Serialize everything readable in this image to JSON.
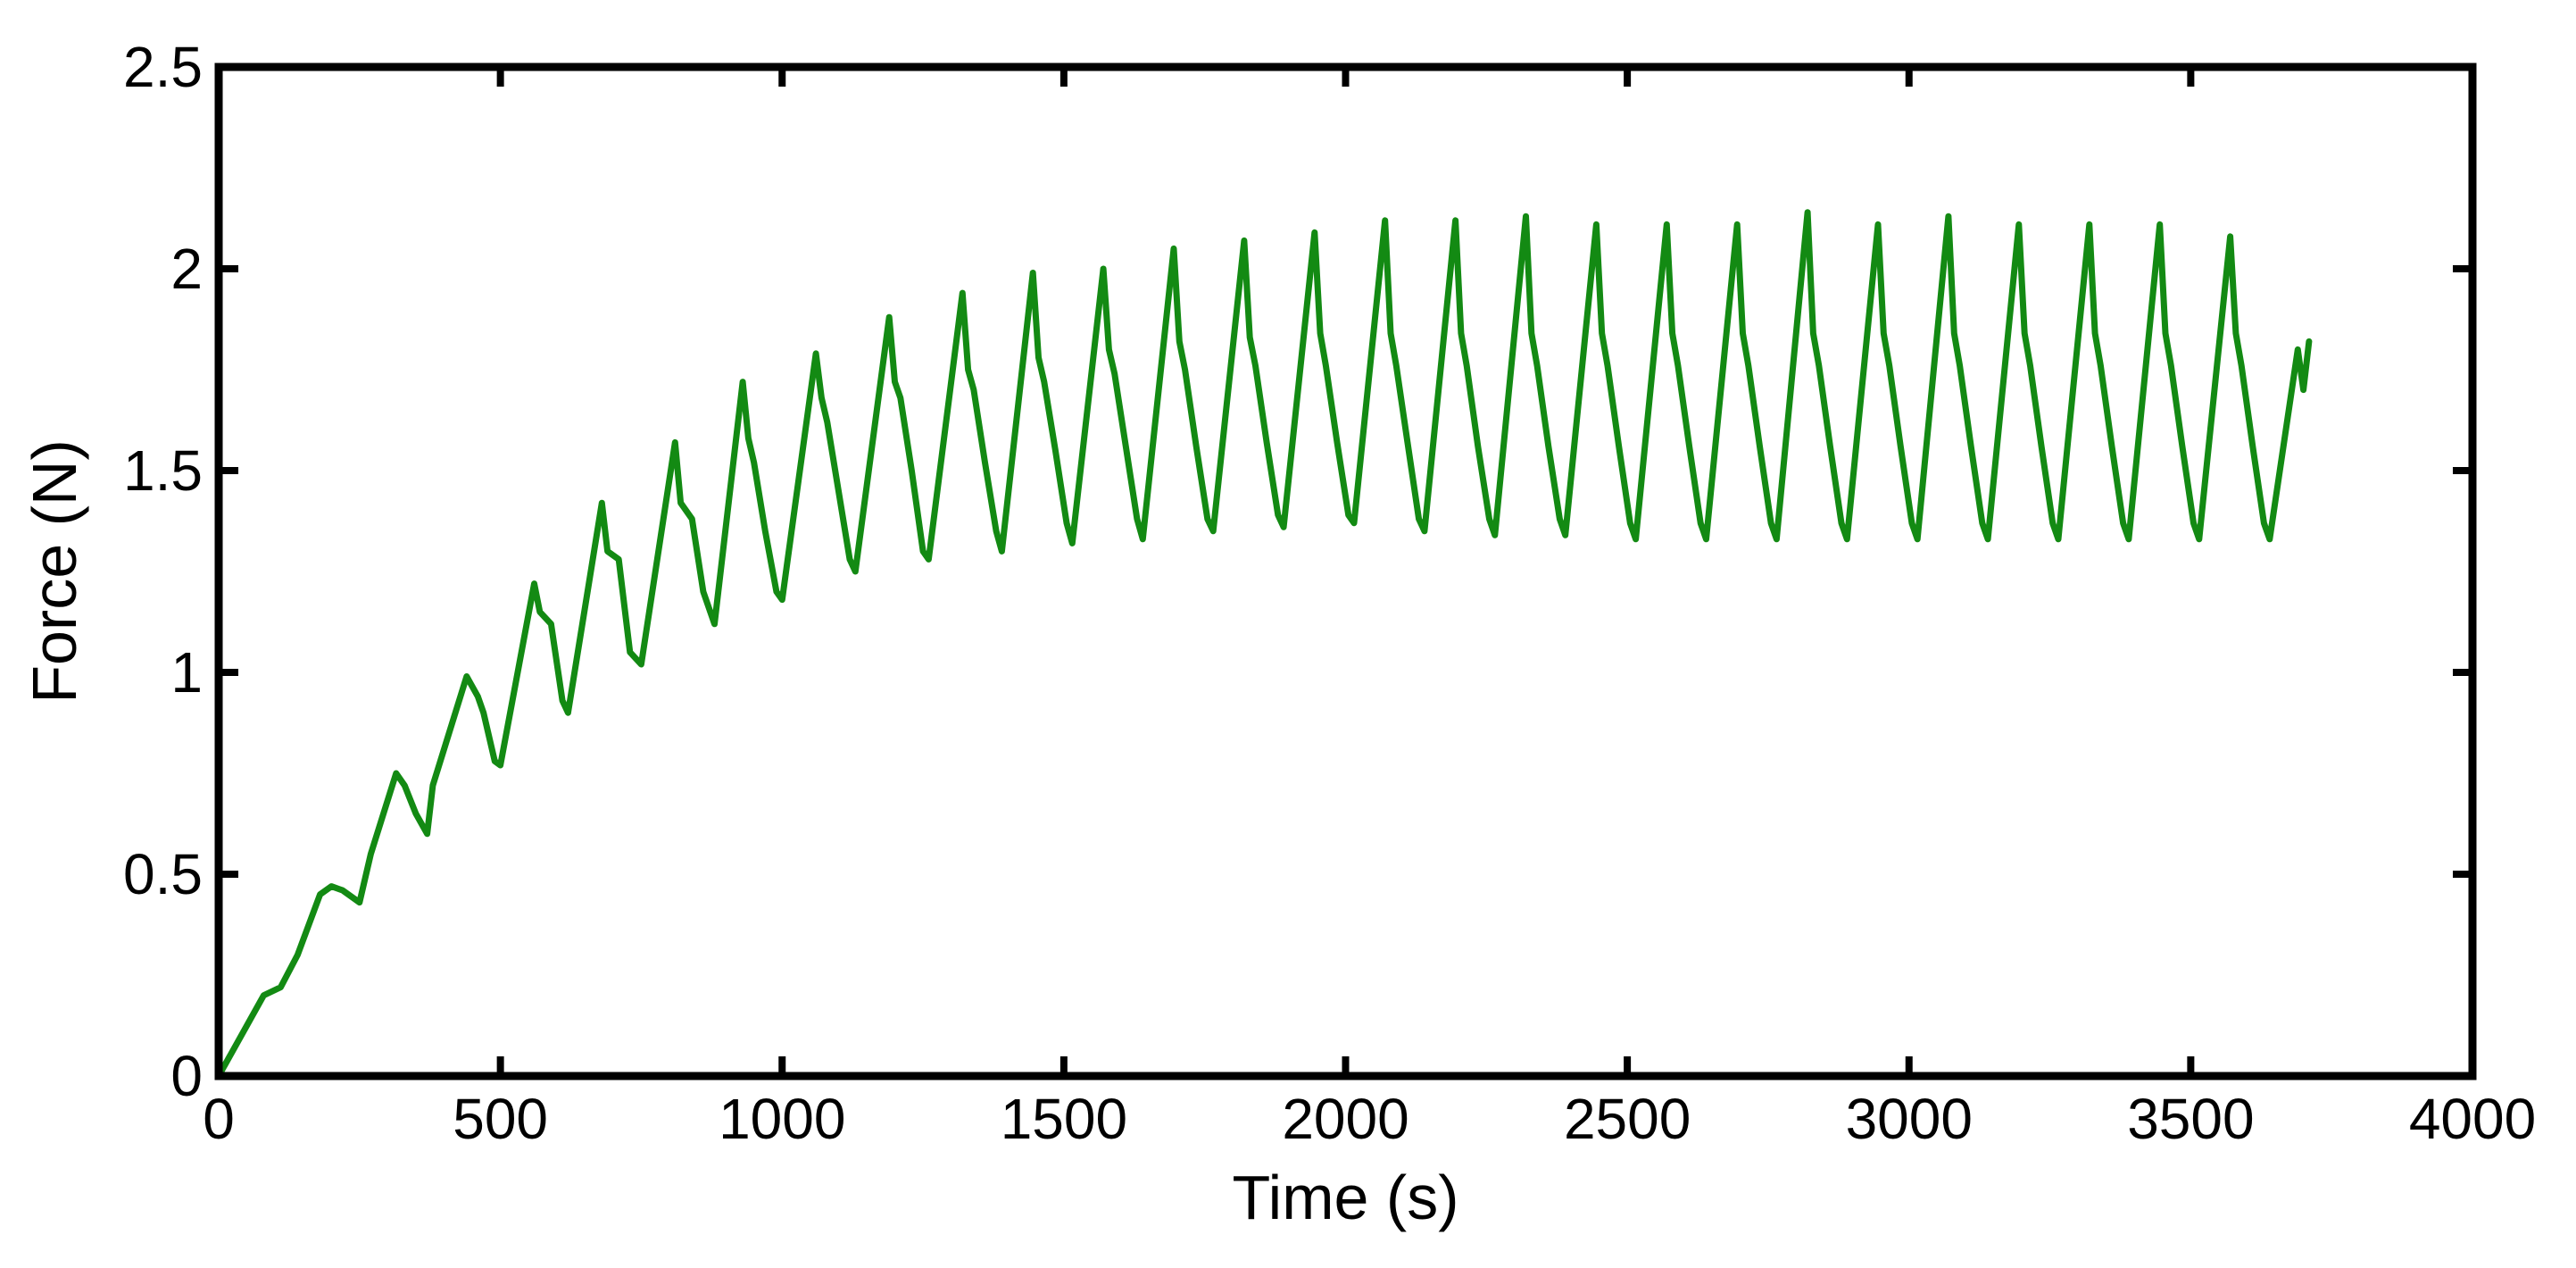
{
  "chart_data": {
    "type": "line",
    "title": "",
    "xlabel": "Time (s)",
    "ylabel": "Force (N)",
    "xlim": [
      0,
      4000
    ],
    "ylim": [
      0,
      2.5
    ],
    "grid": false,
    "x_ticks": [
      0,
      500,
      1000,
      1500,
      2000,
      2500,
      3000,
      3500,
      4000
    ],
    "x_tick_labels": [
      "0",
      "500",
      "1000",
      "1500",
      "2000",
      "2500",
      "3000",
      "3500",
      "4000"
    ],
    "y_ticks": [
      0,
      0.5,
      1,
      1.5,
      2,
      2.5
    ],
    "y_tick_labels": [
      "0",
      "0.5",
      "1",
      "1.5",
      "2",
      "2.5"
    ],
    "series": [
      {
        "name": "Force",
        "color": "#138a13",
        "x": [
          0,
          80,
          110,
          140,
          180,
          200,
          220,
          250,
          270,
          315,
          330,
          350,
          370,
          380,
          440,
          460,
          470,
          490,
          500,
          560,
          570,
          590,
          610,
          620,
          680,
          690,
          710,
          730,
          750,
          810,
          820,
          840,
          860,
          880,
          930,
          940,
          950,
          970,
          990,
          1000,
          1060,
          1070,
          1080,
          1100,
          1120,
          1130,
          1190,
          1200,
          1210,
          1230,
          1250,
          1260,
          1320,
          1330,
          1340,
          1360,
          1380,
          1390,
          1445,
          1455,
          1465,
          1485,
          1505,
          1515,
          1570,
          1580,
          1590,
          1610,
          1630,
          1640,
          1695,
          1705,
          1715,
          1735,
          1755,
          1765,
          1820,
          1830,
          1840,
          1860,
          1880,
          1890,
          1945,
          1955,
          1965,
          1985,
          2005,
          2015,
          2070,
          2080,
          2090,
          2110,
          2130,
          2140,
          2195,
          2205,
          2215,
          2235,
          2255,
          2265,
          2320,
          2330,
          2340,
          2360,
          2380,
          2390,
          2445,
          2455,
          2465,
          2485,
          2505,
          2515,
          2570,
          2580,
          2590,
          2610,
          2630,
          2640,
          2695,
          2705,
          2715,
          2735,
          2755,
          2765,
          2820,
          2830,
          2840,
          2860,
          2880,
          2890,
          2945,
          2955,
          2965,
          2985,
          3005,
          3015,
          3070,
          3080,
          3090,
          3110,
          3130,
          3140,
          3195,
          3205,
          3215,
          3235,
          3255,
          3265,
          3320,
          3330,
          3340,
          3360,
          3380,
          3390,
          3445,
          3455,
          3465,
          3485,
          3505,
          3515,
          3570,
          3580,
          3590,
          3610,
          3630,
          3640,
          3690,
          3700,
          3710
        ],
        "y": [
          0,
          0.2,
          0.22,
          0.3,
          0.45,
          0.47,
          0.46,
          0.43,
          0.55,
          0.75,
          0.72,
          0.65,
          0.6,
          0.72,
          0.99,
          0.94,
          0.9,
          0.78,
          0.77,
          1.22,
          1.15,
          1.12,
          0.93,
          0.9,
          1.42,
          1.3,
          1.28,
          1.05,
          1.02,
          1.57,
          1.42,
          1.38,
          1.2,
          1.12,
          1.72,
          1.58,
          1.52,
          1.35,
          1.2,
          1.18,
          1.79,
          1.68,
          1.62,
          1.45,
          1.28,
          1.25,
          1.88,
          1.72,
          1.68,
          1.5,
          1.3,
          1.28,
          1.94,
          1.75,
          1.7,
          1.52,
          1.35,
          1.3,
          1.99,
          1.78,
          1.72,
          1.55,
          1.37,
          1.32,
          2.0,
          1.8,
          1.74,
          1.56,
          1.38,
          1.33,
          2.05,
          1.82,
          1.75,
          1.56,
          1.38,
          1.35,
          2.07,
          1.83,
          1.76,
          1.57,
          1.39,
          1.36,
          2.09,
          1.84,
          1.76,
          1.57,
          1.39,
          1.37,
          2.12,
          1.84,
          1.76,
          1.57,
          1.38,
          1.35,
          2.12,
          1.84,
          1.76,
          1.56,
          1.38,
          1.34,
          2.13,
          1.84,
          1.76,
          1.56,
          1.38,
          1.34,
          2.11,
          1.84,
          1.76,
          1.56,
          1.37,
          1.33,
          2.11,
          1.84,
          1.76,
          1.56,
          1.37,
          1.33,
          2.11,
          1.84,
          1.76,
          1.56,
          1.37,
          1.33,
          2.14,
          1.84,
          1.76,
          1.56,
          1.37,
          1.33,
          2.11,
          1.84,
          1.76,
          1.56,
          1.37,
          1.33,
          2.13,
          1.84,
          1.76,
          1.56,
          1.37,
          1.33,
          2.11,
          1.84,
          1.76,
          1.56,
          1.37,
          1.33,
          2.11,
          1.84,
          1.76,
          1.56,
          1.37,
          1.33,
          2.11,
          1.84,
          1.76,
          1.56,
          1.37,
          1.33,
          2.08,
          1.84,
          1.76,
          1.56,
          1.37,
          1.33,
          1.8,
          1.7,
          1.82
        ]
      }
    ]
  }
}
